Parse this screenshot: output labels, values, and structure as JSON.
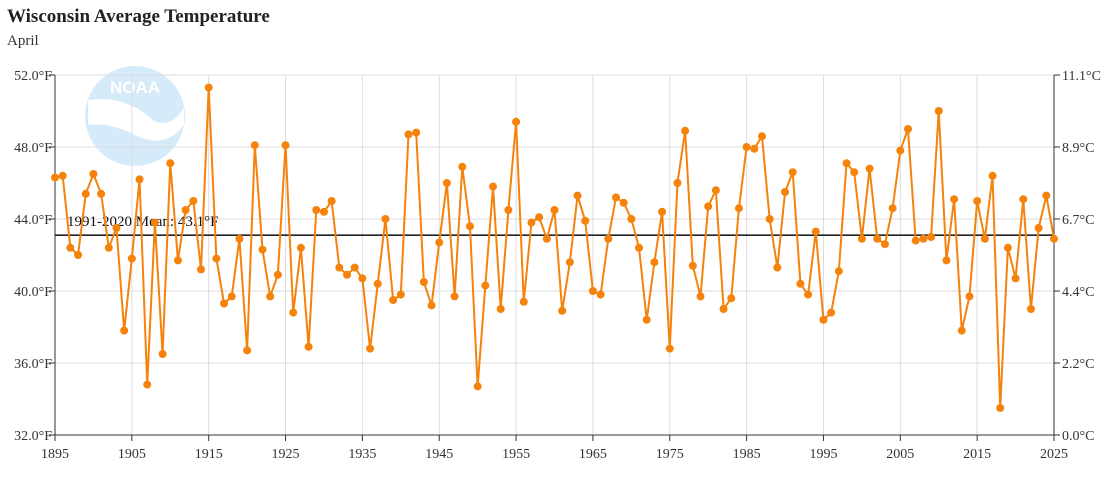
{
  "chart_data": {
    "type": "line",
    "title": "Wisconsin Average Temperature",
    "subtitle": "April",
    "x_range": [
      1895,
      2025
    ],
    "y_range": [
      32.0,
      52.0
    ],
    "y_ticks": [
      "32.0°F",
      "36.0°F",
      "40.0°F",
      "44.0°F",
      "48.0°F",
      "52.0°F"
    ],
    "y2_ticks": [
      "0.0°C",
      "2.2°C",
      "4.4°C",
      "6.7°C",
      "8.9°C",
      "11.1°C"
    ],
    "x_ticks": [
      "1895",
      "1905",
      "1915",
      "1925",
      "1935",
      "1945",
      "1955",
      "1965",
      "1975",
      "1985",
      "1995",
      "2005",
      "2015",
      "2025"
    ],
    "mean": {
      "label": "1991-2020 Mean: 43.1°F",
      "value": 43.1
    },
    "grid": true,
    "series": [
      {
        "color": "#f5820a",
        "x": [
          1895,
          1896,
          1897,
          1898,
          1899,
          1900,
          1901,
          1902,
          1903,
          1904,
          1905,
          1906,
          1907,
          1908,
          1909,
          1910,
          1911,
          1912,
          1913,
          1914,
          1915,
          1916,
          1917,
          1918,
          1919,
          1920,
          1921,
          1922,
          1923,
          1924,
          1925,
          1926,
          1927,
          1928,
          1929,
          1930,
          1931,
          1932,
          1933,
          1934,
          1935,
          1936,
          1937,
          1938,
          1939,
          1940,
          1941,
          1942,
          1943,
          1944,
          1945,
          1946,
          1947,
          1948,
          1949,
          1950,
          1951,
          1952,
          1953,
          1954,
          1955,
          1956,
          1957,
          1958,
          1959,
          1960,
          1961,
          1962,
          1963,
          1964,
          1965,
          1966,
          1967,
          1968,
          1969,
          1970,
          1971,
          1972,
          1973,
          1974,
          1975,
          1976,
          1977,
          1978,
          1979,
          1980,
          1981,
          1982,
          1983,
          1984,
          1985,
          1986,
          1987,
          1988,
          1989,
          1990,
          1991,
          1992,
          1993,
          1994,
          1995,
          1996,
          1997,
          1998,
          1999,
          2000,
          2001,
          2002,
          2003,
          2004,
          2005,
          2006,
          2007,
          2008,
          2009,
          2010,
          2011,
          2012,
          2013,
          2014,
          2015,
          2016,
          2017,
          2018,
          2019,
          2020,
          2021,
          2022,
          2023,
          2024,
          2025
        ],
        "y": [
          46.3,
          46.4,
          42.4,
          42.0,
          45.4,
          46.5,
          45.4,
          42.4,
          43.5,
          37.8,
          41.8,
          46.2,
          34.8,
          43.8,
          36.5,
          47.1,
          41.7,
          44.5,
          45.0,
          41.2,
          51.3,
          41.8,
          39.3,
          39.7,
          42.9,
          36.7,
          48.1,
          42.3,
          39.7,
          40.9,
          48.1,
          38.8,
          42.4,
          36.9,
          44.5,
          44.4,
          45.0,
          41.3,
          40.9,
          41.3,
          40.7,
          36.8,
          40.4,
          44.0,
          39.5,
          39.8,
          48.7,
          48.8,
          40.5,
          39.2,
          42.7,
          46.0,
          39.7,
          46.9,
          43.6,
          34.7,
          40.3,
          45.8,
          39.0,
          44.5,
          49.4,
          39.4,
          43.8,
          44.1,
          42.9,
          44.5,
          38.9,
          41.6,
          45.3,
          43.9,
          40.0,
          39.8,
          42.9,
          45.2,
          44.9,
          44.0,
          42.4,
          38.4,
          41.6,
          44.4,
          36.8,
          46.0,
          48.9,
          41.4,
          39.7,
          44.7,
          45.6,
          39.0,
          39.6,
          44.6,
          48.0,
          47.9,
          48.6,
          44.0,
          41.3,
          45.5,
          46.6,
          40.4,
          39.8,
          43.3,
          38.4,
          38.8,
          41.1,
          47.1,
          46.6,
          42.9,
          46.8,
          42.9,
          42.6,
          44.6,
          47.8,
          49.0,
          42.8,
          42.9,
          43.0,
          50.0,
          41.7,
          45.1,
          37.8,
          39.7,
          45.0,
          42.9,
          46.4,
          33.5,
          42.4,
          40.7,
          45.1,
          39.0,
          43.5,
          45.3,
          42.9
        ]
      }
    ]
  }
}
